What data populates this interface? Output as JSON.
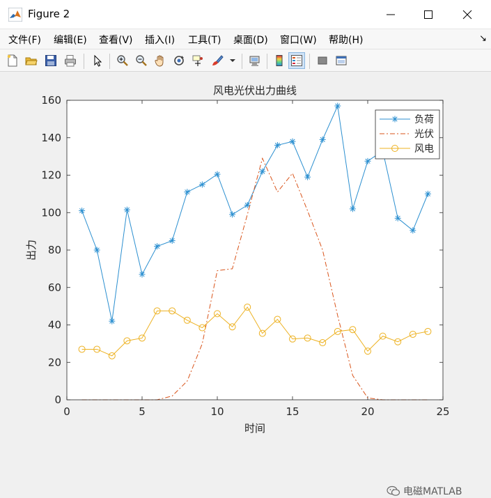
{
  "window": {
    "title": "Figure 2"
  },
  "menu": {
    "items": [
      "文件(F)",
      "编辑(E)",
      "查看(V)",
      "插入(I)",
      "工具(T)",
      "桌面(D)",
      "窗口(W)",
      "帮助(H)"
    ]
  },
  "toolbar": {
    "icons": [
      "new-figure-icon",
      "open-icon",
      "save-icon",
      "print-icon",
      "pointer-icon",
      "zoom-in-icon",
      "zoom-out-icon",
      "pan-icon",
      "rotate-icon",
      "data-cursor-icon",
      "brush-icon",
      "link-icon",
      "colorbar-icon",
      "legend-icon",
      "hide-tools-icon",
      "dock-icon"
    ]
  },
  "colors": {
    "load": "#2b8fd0",
    "pv": "#d95319",
    "wind": "#edb120"
  },
  "chart_data": {
    "type": "line",
    "title": "风电光伏出力曲线",
    "xlabel": "时间",
    "ylabel": "出力",
    "xlim": [
      0,
      25
    ],
    "ylim": [
      0,
      160
    ],
    "xticks": [
      0,
      5,
      10,
      15,
      20,
      25
    ],
    "yticks": [
      0,
      20,
      40,
      60,
      80,
      100,
      120,
      140,
      160
    ],
    "grid": false,
    "legend_position": "top-right",
    "series": [
      {
        "name": "负荷",
        "marker": "asterisk",
        "line": "solid",
        "x": [
          1,
          2,
          3,
          4,
          5,
          6,
          7,
          8,
          9,
          10,
          11,
          12,
          13,
          14,
          15,
          16,
          17,
          18,
          19,
          20,
          21,
          22,
          23,
          24
        ],
        "values": [
          101,
          80,
          42,
          101.5,
          67,
          82,
          85,
          111,
          115,
          120.5,
          99,
          104,
          122,
          136,
          138,
          119,
          139,
          157,
          102,
          127.5,
          133,
          97,
          90.5,
          110
        ]
      },
      {
        "name": "光伏",
        "marker": "none",
        "line": "dashdot",
        "x": [
          1,
          2,
          3,
          4,
          5,
          6,
          7,
          8,
          9,
          10,
          11,
          12,
          13,
          14,
          15,
          16,
          17,
          18,
          19,
          20,
          21,
          22,
          23,
          24
        ],
        "values": [
          0,
          0,
          0,
          0,
          0,
          0,
          2,
          10,
          30,
          69,
          70,
          99,
          129,
          111,
          121,
          101,
          80,
          45,
          13,
          1,
          0,
          0,
          0,
          0
        ]
      },
      {
        "name": "风电",
        "marker": "circle",
        "line": "solid",
        "x": [
          1,
          2,
          3,
          4,
          5,
          6,
          7,
          8,
          9,
          10,
          11,
          12,
          13,
          14,
          15,
          16,
          17,
          18,
          19,
          20,
          21,
          22,
          23,
          24
        ],
        "values": [
          27,
          27,
          23.5,
          31.5,
          33,
          47.5,
          47.5,
          42.5,
          38.5,
          46,
          39,
          49.5,
          35.5,
          43,
          32.5,
          33,
          30.5,
          36.5,
          37.5,
          26,
          34,
          31,
          35,
          36.5
        ]
      }
    ]
  },
  "watermark": {
    "text": "电磁MATLAB"
  }
}
